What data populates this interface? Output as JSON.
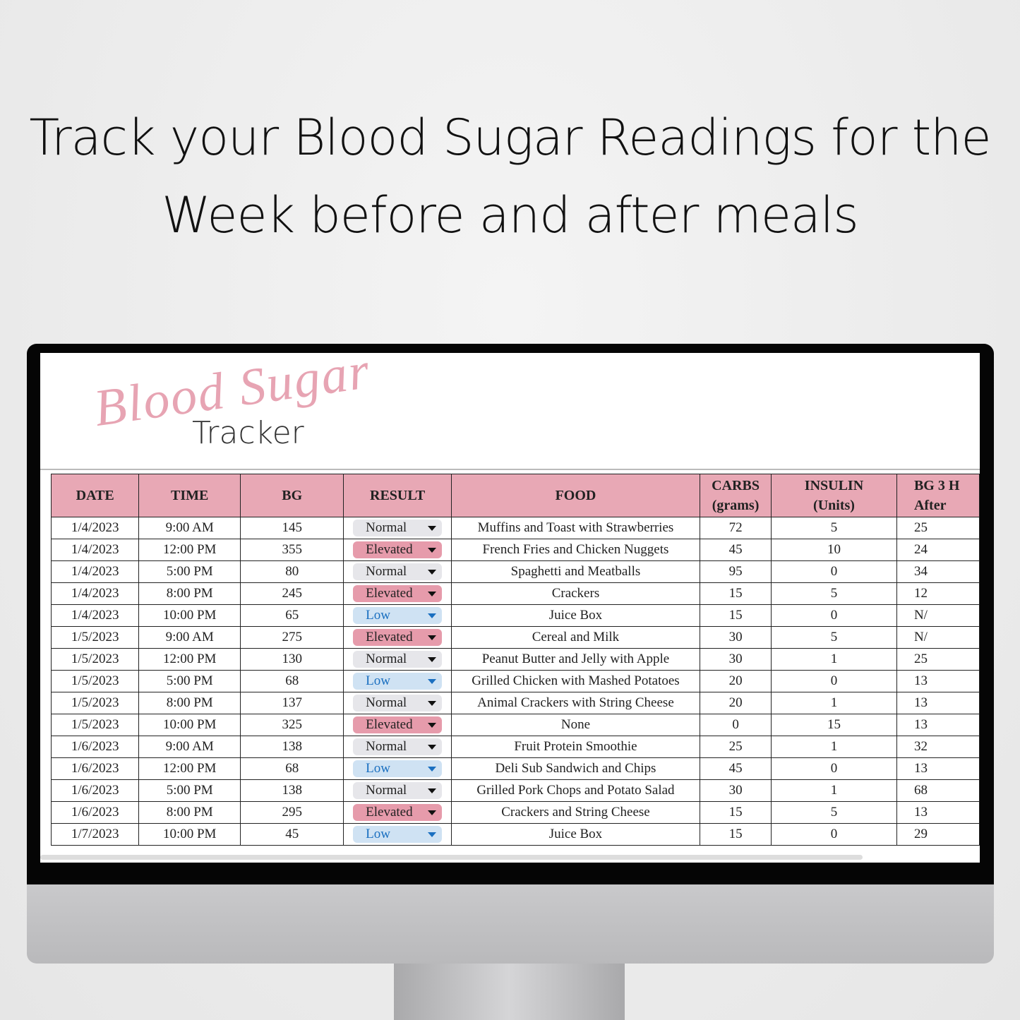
{
  "header": {
    "title": "Track your Blood Sugar Readings for the Week before and after meals"
  },
  "logo": {
    "script": "Blood Sugar",
    "word": "Tracker"
  },
  "table": {
    "columns": [
      [
        "DATE"
      ],
      [
        "TIME"
      ],
      [
        "BG"
      ],
      [
        "RESULT"
      ],
      [
        "FOOD"
      ],
      [
        "CARBS",
        "(grams)"
      ],
      [
        "INSULIN",
        "(Units)"
      ],
      [
        "BG 3 H",
        "After"
      ]
    ],
    "rows": [
      [
        "1/4/2023",
        "9:00 AM",
        145,
        "Normal",
        "Muffins and Toast with Strawberries",
        72,
        5,
        "25"
      ],
      [
        "1/4/2023",
        "12:00 PM",
        355,
        "Elevated",
        "French Fries and Chicken Nuggets",
        45,
        10,
        "24"
      ],
      [
        "1/4/2023",
        "5:00 PM",
        80,
        "Normal",
        "Spaghetti and Meatballs",
        95,
        0,
        "34"
      ],
      [
        "1/4/2023",
        "8:00 PM",
        245,
        "Elevated",
        "Crackers",
        15,
        5,
        "12"
      ],
      [
        "1/4/2023",
        "10:00 PM",
        65,
        "Low",
        "Juice Box",
        15,
        0,
        "N/"
      ],
      [
        "1/5/2023",
        "9:00 AM",
        275,
        "Elevated",
        "Cereal and Milk",
        30,
        5,
        "N/"
      ],
      [
        "1/5/2023",
        "12:00 PM",
        130,
        "Normal",
        "Peanut Butter and Jelly with Apple",
        30,
        1,
        "25"
      ],
      [
        "1/5/2023",
        "5:00 PM",
        68,
        "Low",
        "Grilled Chicken with Mashed Potatoes",
        20,
        0,
        "13"
      ],
      [
        "1/5/2023",
        "8:00 PM",
        137,
        "Normal",
        "Animal Crackers with String Cheese",
        20,
        1,
        "13"
      ],
      [
        "1/5/2023",
        "10:00 PM",
        325,
        "Elevated",
        "None",
        0,
        15,
        "13"
      ],
      [
        "1/6/2023",
        "9:00 AM",
        138,
        "Normal",
        "Fruit Protein Smoothie",
        25,
        1,
        "32"
      ],
      [
        "1/6/2023",
        "12:00 PM",
        68,
        "Low",
        "Deli Sub Sandwich and Chips",
        45,
        0,
        "13"
      ],
      [
        "1/6/2023",
        "5:00 PM",
        138,
        "Normal",
        "Grilled Pork Chops and Potato Salad",
        30,
        1,
        "68"
      ],
      [
        "1/6/2023",
        "8:00 PM",
        295,
        "Elevated",
        "Crackers and String Cheese",
        15,
        5,
        "13"
      ],
      [
        "1/7/2023",
        "10:00 PM",
        45,
        "Low",
        "Juice Box",
        15,
        0,
        "29"
      ]
    ]
  }
}
